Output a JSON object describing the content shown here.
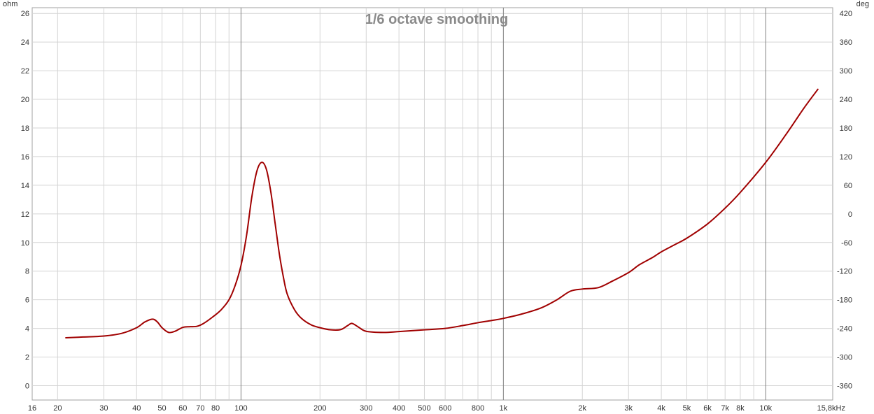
{
  "chart_data": {
    "type": "line",
    "title": "1/6 octave smoothing",
    "x_unit": "Hz",
    "x_scale": "log",
    "xlim": [
      16,
      18000
    ],
    "x_ticks": [
      {
        "v": 16,
        "label": "16"
      },
      {
        "v": 20,
        "label": "20"
      },
      {
        "v": 30,
        "label": "30"
      },
      {
        "v": 40,
        "label": "40"
      },
      {
        "v": 50,
        "label": "50"
      },
      {
        "v": 60,
        "label": "60"
      },
      {
        "v": 70,
        "label": "70"
      },
      {
        "v": 80,
        "label": "80"
      },
      {
        "v": 100,
        "label": "100"
      },
      {
        "v": 200,
        "label": "200"
      },
      {
        "v": 300,
        "label": "300"
      },
      {
        "v": 400,
        "label": "400"
      },
      {
        "v": 500,
        "label": "500"
      },
      {
        "v": 600,
        "label": "600"
      },
      {
        "v": 800,
        "label": "800"
      },
      {
        "v": 1000,
        "label": "1k"
      },
      {
        "v": 2000,
        "label": "2k"
      },
      {
        "v": 3000,
        "label": "3k"
      },
      {
        "v": 4000,
        "label": "4k"
      },
      {
        "v": 5000,
        "label": "5k"
      },
      {
        "v": 6000,
        "label": "6k"
      },
      {
        "v": 7000,
        "label": "7k"
      },
      {
        "v": 8000,
        "label": "8k"
      },
      {
        "v": 10000,
        "label": "10k"
      },
      {
        "v": 15800,
        "label": "15,8kHz"
      }
    ],
    "y_left": {
      "unit": "ohm",
      "ylim": [
        -1,
        26.4
      ],
      "ticks": [
        0,
        2,
        4,
        6,
        8,
        10,
        12,
        14,
        16,
        18,
        20,
        22,
        24,
        26
      ]
    },
    "y_right": {
      "unit": "deg",
      "ticks": [
        -360,
        -300,
        -240,
        -180,
        -120,
        -60,
        0,
        60,
        120,
        180,
        240,
        300,
        360,
        420
      ]
    },
    "grid": true,
    "series": [
      {
        "color": "#a00000",
        "axis": "left",
        "points": [
          [
            21.5,
            3.35
          ],
          [
            25,
            3.4
          ],
          [
            30,
            3.47
          ],
          [
            35,
            3.65
          ],
          [
            40,
            4.05
          ],
          [
            43,
            4.45
          ],
          [
            46,
            4.65
          ],
          [
            48,
            4.45
          ],
          [
            50,
            4.05
          ],
          [
            53,
            3.72
          ],
          [
            56,
            3.8
          ],
          [
            60,
            4.07
          ],
          [
            64,
            4.12
          ],
          [
            68,
            4.15
          ],
          [
            72,
            4.35
          ],
          [
            78,
            4.8
          ],
          [
            84,
            5.3
          ],
          [
            90,
            6.0
          ],
          [
            95,
            7.0
          ],
          [
            100,
            8.4
          ],
          [
            105,
            10.5
          ],
          [
            110,
            13.2
          ],
          [
            115,
            15.0
          ],
          [
            120,
            15.6
          ],
          [
            125,
            15.1
          ],
          [
            130,
            13.5
          ],
          [
            135,
            11.3
          ],
          [
            140,
            9.2
          ],
          [
            145,
            7.6
          ],
          [
            150,
            6.4
          ],
          [
            160,
            5.3
          ],
          [
            170,
            4.7
          ],
          [
            185,
            4.25
          ],
          [
            200,
            4.05
          ],
          [
            220,
            3.9
          ],
          [
            240,
            3.92
          ],
          [
            255,
            4.2
          ],
          [
            265,
            4.35
          ],
          [
            280,
            4.1
          ],
          [
            300,
            3.8
          ],
          [
            350,
            3.72
          ],
          [
            400,
            3.78
          ],
          [
            500,
            3.9
          ],
          [
            600,
            4.0
          ],
          [
            700,
            4.2
          ],
          [
            800,
            4.4
          ],
          [
            900,
            4.55
          ],
          [
            1000,
            4.7
          ],
          [
            1200,
            5.05
          ],
          [
            1400,
            5.45
          ],
          [
            1600,
            6.0
          ],
          [
            1800,
            6.6
          ],
          [
            2000,
            6.75
          ],
          [
            2300,
            6.85
          ],
          [
            2600,
            7.3
          ],
          [
            3000,
            7.9
          ],
          [
            3300,
            8.45
          ],
          [
            3700,
            8.95
          ],
          [
            4000,
            9.35
          ],
          [
            4500,
            9.85
          ],
          [
            5000,
            10.3
          ],
          [
            6000,
            11.3
          ],
          [
            7000,
            12.4
          ],
          [
            8000,
            13.5
          ],
          [
            10000,
            15.6
          ],
          [
            12000,
            17.6
          ],
          [
            14000,
            19.4
          ],
          [
            15800,
            20.7
          ]
        ]
      }
    ]
  }
}
